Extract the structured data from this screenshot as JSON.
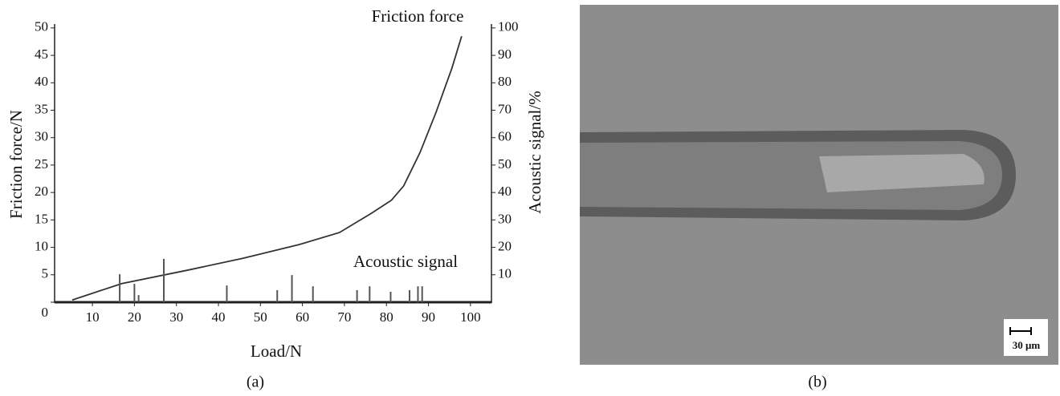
{
  "chart_data": {
    "type": "line",
    "xlabel": "Load/N",
    "ylabel": "Friction force/N",
    "y2label": "Acoustic signal/%",
    "annotations": [
      "Friction force",
      "Acoustic signal"
    ],
    "caption": "(a)",
    "xlim": [
      1,
      105
    ],
    "xticks": [
      10,
      20,
      30,
      40,
      50,
      60,
      70,
      80,
      90,
      100
    ],
    "ylim": [
      0,
      51
    ],
    "yticks": [
      0,
      5,
      10,
      15,
      20,
      25,
      30,
      35,
      40,
      45,
      50
    ],
    "y2lim": [
      0,
      102
    ],
    "y2ticks": [
      10,
      20,
      30,
      40,
      50,
      60,
      70,
      80,
      90,
      100
    ],
    "series": [
      {
        "name": "Friction force",
        "style": "line",
        "color": "#333333",
        "x": [
          5.2,
          17,
          32.4,
          45.8,
          59.2,
          68.8,
          76.4,
          81.2,
          84.1,
          88,
          91.8,
          95.6,
          97.9
        ],
        "values": [
          0.4,
          3.4,
          5.8,
          8.0,
          10.5,
          12.7,
          16.2,
          18.6,
          21.2,
          27.3,
          34.6,
          42.7,
          48.5
        ]
      },
      {
        "name": "Acoustic signal",
        "style": "stem",
        "axis": "y2",
        "color": "#555555",
        "x": [
          16.5,
          20,
          21,
          27,
          42,
          54,
          57.5,
          62.5,
          73,
          76,
          81,
          85.5,
          87.5,
          88.5
        ],
        "values": [
          10.2,
          6.7,
          2.6,
          15.8,
          6.1,
          4.4,
          9.9,
          5.8,
          4.4,
          5.8,
          3.8,
          4.4,
          5.8,
          5.8
        ]
      }
    ]
  },
  "micrograph": {
    "caption": "(b)",
    "scale_bar_label": "30 μm"
  }
}
